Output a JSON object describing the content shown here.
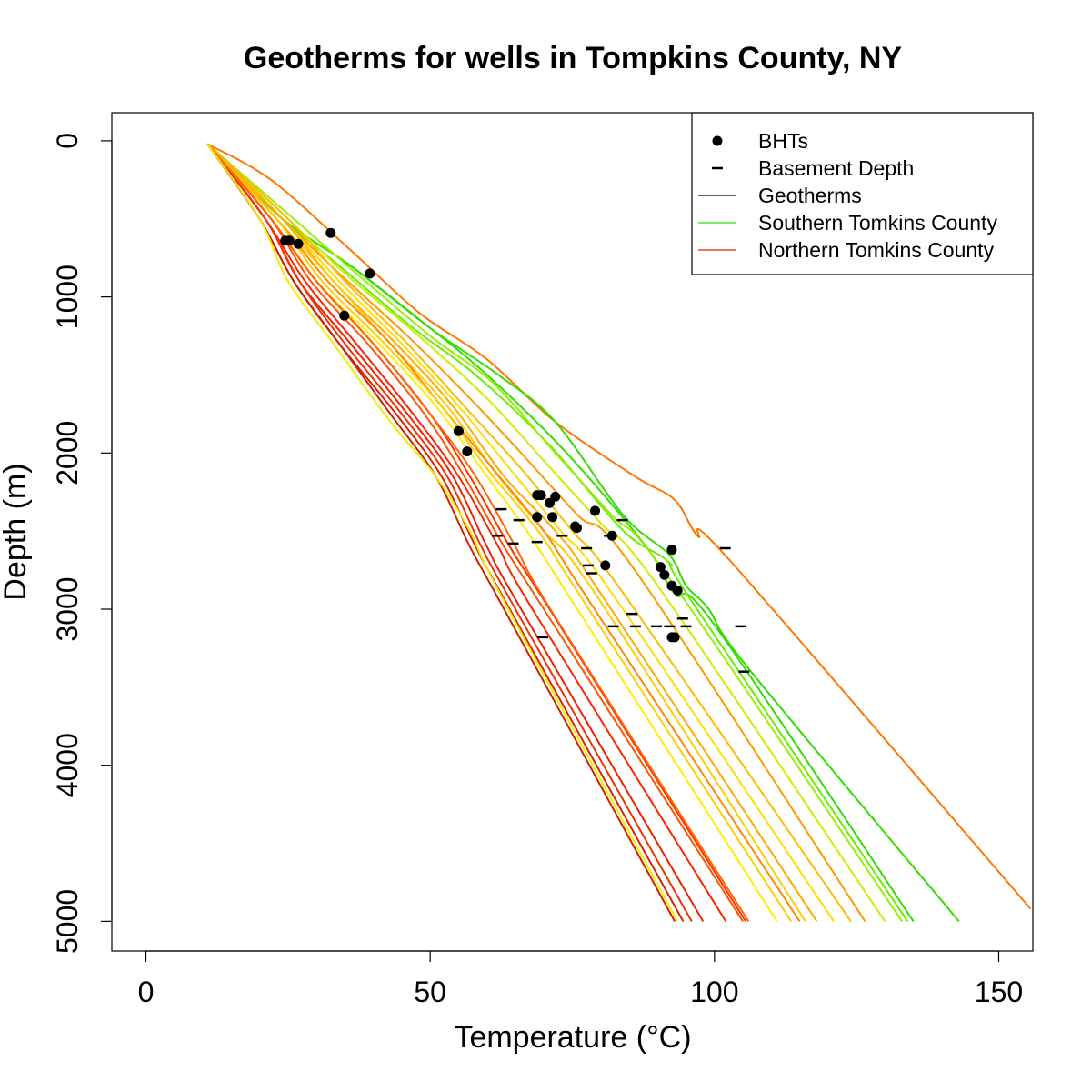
{
  "chart_data": {
    "type": "line",
    "title": "Geotherms for wells in Tompkins County, NY",
    "xlabel": "Temperature (°C)",
    "ylabel": "Depth (m)",
    "xlim": [
      -6,
      156
    ],
    "ylim": [
      5190,
      -180
    ],
    "y_reversed": true,
    "x_ticks": [
      0,
      50,
      100,
      150
    ],
    "y_ticks": [
      0,
      1000,
      2000,
      3000,
      4000,
      5000
    ],
    "x_tick_labels": [
      "0",
      "50",
      "100",
      "150"
    ],
    "y_tick_labels": [
      "0",
      "1000",
      "2000",
      "3000",
      "4000",
      "5000"
    ],
    "grid": false,
    "legend_position": "top-right",
    "legend": [
      {
        "label": "BHTs",
        "symbol": "point",
        "color": "#000000"
      },
      {
        "label": "Basement Depth",
        "symbol": "dash",
        "color": "#000000"
      },
      {
        "label": "Geotherms",
        "symbol": "line",
        "color": "#000000"
      },
      {
        "label": "Southern Tomkins County",
        "symbol": "line",
        "color": "#33dd00"
      },
      {
        "label": "Northern Tomkins County",
        "symbol": "line",
        "color": "#dd2200"
      }
    ],
    "surface": {
      "temperature": 10.8,
      "depth": 20
    },
    "series": [
      {
        "color": "#ff7700",
        "points": [
          [
            10.8,
            20
          ],
          [
            22,
            250
          ],
          [
            36,
            700
          ],
          [
            48,
            1100
          ],
          [
            60,
            1400
          ],
          [
            72,
            1800
          ],
          [
            86,
            2150
          ],
          [
            93,
            2300
          ],
          [
            97,
            2530
          ],
          [
            103,
            2700
          ],
          [
            155.6,
            4920
          ]
        ]
      },
      {
        "color": "#33dd00",
        "points": [
          [
            10.8,
            20
          ],
          [
            24,
            500
          ],
          [
            36,
            800
          ],
          [
            50,
            1200
          ],
          [
            62,
            1500
          ],
          [
            72,
            1800
          ],
          [
            84,
            2400
          ],
          [
            92,
            2650
          ],
          [
            95,
            2850
          ],
          [
            99,
            3000
          ],
          [
            106,
            3380
          ],
          [
            143,
            5000
          ]
        ]
      },
      {
        "color": "#33dd00",
        "points": [
          [
            10.8,
            20
          ],
          [
            24,
            500
          ],
          [
            36,
            800
          ],
          [
            50,
            1200
          ],
          [
            60,
            1500
          ],
          [
            74,
            2000
          ],
          [
            88,
            2600
          ],
          [
            93,
            2900
          ],
          [
            100,
            3100
          ],
          [
            135,
            5000
          ]
        ]
      },
      {
        "color": "#66ee00",
        "points": [
          [
            10.8,
            20
          ],
          [
            24,
            500
          ],
          [
            34,
            800
          ],
          [
            47,
            1200
          ],
          [
            58,
            1500
          ],
          [
            71,
            1950
          ],
          [
            84,
            2500
          ],
          [
            92,
            2700
          ],
          [
            96,
            2950
          ],
          [
            134,
            5000
          ]
        ]
      },
      {
        "color": "#99ee00",
        "points": [
          [
            10.8,
            20
          ],
          [
            26,
            500
          ],
          [
            37,
            850
          ],
          [
            50,
            1250
          ],
          [
            61,
            1550
          ],
          [
            72,
            2000
          ],
          [
            82,
            2400
          ],
          [
            92,
            2800
          ],
          [
            133,
            5000
          ]
        ]
      },
      {
        "color": "#ccee00",
        "points": [
          [
            10.8,
            20
          ],
          [
            25,
            500
          ],
          [
            35,
            850
          ],
          [
            48,
            1250
          ],
          [
            60,
            1650
          ],
          [
            70,
            2050
          ],
          [
            80,
            2450
          ],
          [
            90,
            2850
          ],
          [
            130,
            5000
          ]
        ]
      },
      {
        "color": "#ff9900",
        "points": [
          [
            10.8,
            20
          ],
          [
            24,
            500
          ],
          [
            34,
            850
          ],
          [
            46,
            1250
          ],
          [
            57,
            1650
          ],
          [
            66,
            2000
          ],
          [
            76,
            2400
          ],
          [
            86,
            2750
          ],
          [
            126.5,
            5000
          ]
        ]
      },
      {
        "color": "#ffbb00",
        "points": [
          [
            10.8,
            20
          ],
          [
            25,
            500
          ],
          [
            35,
            900
          ],
          [
            46,
            1300
          ],
          [
            56,
            1700
          ],
          [
            66,
            2100
          ],
          [
            75,
            2500
          ],
          [
            84,
            2900
          ],
          [
            124,
            5000
          ]
        ]
      },
      {
        "color": "#ffdd00",
        "points": [
          [
            10.8,
            20
          ],
          [
            24,
            500
          ],
          [
            34,
            900
          ],
          [
            45,
            1300
          ],
          [
            55,
            1700
          ],
          [
            64,
            2100
          ],
          [
            73,
            2500
          ],
          [
            82,
            2900
          ],
          [
            121,
            5000
          ]
        ]
      },
      {
        "color": "#ffaa00",
        "points": [
          [
            10.8,
            20
          ],
          [
            24,
            500
          ],
          [
            33,
            900
          ],
          [
            44,
            1300
          ],
          [
            54,
            1700
          ],
          [
            63,
            2150
          ],
          [
            72,
            2500
          ],
          [
            80,
            2900
          ],
          [
            118,
            5000
          ]
        ]
      },
      {
        "color": "#ffcc00",
        "points": [
          [
            10.8,
            20
          ],
          [
            23,
            500
          ],
          [
            33,
            900
          ],
          [
            43,
            1300
          ],
          [
            53,
            1700
          ],
          [
            62,
            2150
          ],
          [
            70,
            2500
          ],
          [
            79,
            2900
          ],
          [
            116,
            5000
          ]
        ]
      },
      {
        "color": "#ff8800",
        "points": [
          [
            10.8,
            20
          ],
          [
            23,
            500
          ],
          [
            32,
            900
          ],
          [
            43,
            1300
          ],
          [
            52,
            1700
          ],
          [
            61,
            2100
          ],
          [
            70,
            2500
          ],
          [
            78,
            2950
          ],
          [
            115,
            5000
          ]
        ]
      },
      {
        "color": "#ffcc00",
        "points": [
          [
            10.8,
            20
          ],
          [
            23,
            500
          ],
          [
            31,
            900
          ],
          [
            42,
            1300
          ],
          [
            52,
            1700
          ],
          [
            60,
            2100
          ],
          [
            69,
            2500
          ],
          [
            77,
            2950
          ],
          [
            113.5,
            5000
          ]
        ]
      },
      {
        "color": "#ffee00",
        "points": [
          [
            10.8,
            20
          ],
          [
            22,
            500
          ],
          [
            30,
            900
          ],
          [
            41,
            1300
          ],
          [
            51,
            1700
          ],
          [
            59,
            2100
          ],
          [
            67,
            2500
          ],
          [
            75,
            2950
          ],
          [
            111,
            5000
          ]
        ]
      },
      {
        "color": "#ff3300",
        "points": [
          [
            10.8,
            20
          ],
          [
            22,
            500
          ],
          [
            30,
            900
          ],
          [
            40,
            1300
          ],
          [
            50,
            1750
          ],
          [
            57,
            2150
          ],
          [
            64,
            2600
          ],
          [
            71,
            3000
          ],
          [
            105.5,
            5000
          ]
        ]
      },
      {
        "color": "#ff5500",
        "points": [
          [
            10.8,
            20
          ],
          [
            22,
            500
          ],
          [
            29,
            900
          ],
          [
            39,
            1300
          ],
          [
            49,
            1750
          ],
          [
            56,
            2150
          ],
          [
            63,
            2600
          ],
          [
            70,
            3000
          ],
          [
            105,
            5000
          ]
        ]
      },
      {
        "color": "#ff2200",
        "points": [
          [
            10.8,
            20
          ],
          [
            21,
            500
          ],
          [
            28,
            900
          ],
          [
            37,
            1300
          ],
          [
            47,
            1750
          ],
          [
            55,
            2150
          ],
          [
            62,
            2600
          ],
          [
            68,
            3000
          ],
          [
            102,
            5000
          ]
        ]
      },
      {
        "color": "#ee2200",
        "points": [
          [
            10.8,
            20
          ],
          [
            21,
            500
          ],
          [
            27,
            900
          ],
          [
            36,
            1300
          ],
          [
            46,
            1750
          ],
          [
            54,
            2150
          ],
          [
            60,
            2600
          ],
          [
            66,
            3000
          ],
          [
            98,
            5000
          ]
        ]
      },
      {
        "color": "#ee3300",
        "points": [
          [
            10.8,
            20
          ],
          [
            21,
            500
          ],
          [
            27,
            900
          ],
          [
            35,
            1300
          ],
          [
            45,
            1750
          ],
          [
            53,
            2150
          ],
          [
            59,
            2600
          ],
          [
            65,
            3000
          ],
          [
            96,
            5000
          ]
        ]
      },
      {
        "color": "#dd2200",
        "points": [
          [
            10.8,
            20
          ],
          [
            20,
            500
          ],
          [
            26,
            900
          ],
          [
            34,
            1300
          ],
          [
            44,
            1750
          ],
          [
            52,
            2150
          ],
          [
            58,
            2600
          ],
          [
            64,
            3000
          ],
          [
            94.5,
            5000
          ]
        ]
      },
      {
        "color": "#cc2200",
        "points": [
          [
            10.8,
            20
          ],
          [
            20,
            500
          ],
          [
            26,
            900
          ],
          [
            34,
            1300
          ],
          [
            43,
            1750
          ],
          [
            51,
            2150
          ],
          [
            57,
            2600
          ],
          [
            63,
            3000
          ],
          [
            93,
            5000
          ]
        ]
      },
      {
        "color": "#ff6600",
        "points": [
          [
            10.8,
            20
          ],
          [
            22,
            500
          ],
          [
            30,
            900
          ],
          [
            40,
            1300
          ],
          [
            50,
            1750
          ],
          [
            58,
            2150
          ],
          [
            65,
            2600
          ],
          [
            72,
            3050
          ],
          [
            106,
            5000
          ]
        ]
      },
      {
        "color": "#eeee00",
        "points": [
          [
            10.8,
            20
          ],
          [
            20,
            500
          ],
          [
            25,
            900
          ],
          [
            33,
            1300
          ],
          [
            43,
            1800
          ],
          [
            51,
            2150
          ],
          [
            57,
            2500
          ],
          [
            63,
            2950
          ],
          [
            93.5,
            5000
          ]
        ]
      }
    ],
    "bhts": [
      [
        24.5,
        640
      ],
      [
        25.2,
        640
      ],
      [
        26.8,
        660
      ],
      [
        32.5,
        590
      ],
      [
        39.4,
        850
      ],
      [
        34.9,
        1120
      ],
      [
        55,
        1860
      ],
      [
        56.5,
        1990
      ],
      [
        68.8,
        2270
      ],
      [
        69.5,
        2270
      ],
      [
        72,
        2280
      ],
      [
        71,
        2320
      ],
      [
        68.8,
        2410
      ],
      [
        71.5,
        2410
      ],
      [
        79,
        2370
      ],
      [
        75.5,
        2470
      ],
      [
        75.8,
        2480
      ],
      [
        82,
        2530
      ],
      [
        80.8,
        2720
      ],
      [
        92.5,
        2620
      ],
      [
        90.5,
        2730
      ],
      [
        91.2,
        2780
      ],
      [
        92.5,
        2850
      ],
      [
        93.5,
        2880
      ],
      [
        92.5,
        3180
      ],
      [
        93,
        3180
      ]
    ],
    "basement": [
      [
        62.5,
        2360
      ],
      [
        65.6,
        2430
      ],
      [
        61.8,
        2530
      ],
      [
        64.6,
        2580
      ],
      [
        68.8,
        2570
      ],
      [
        69.8,
        3180
      ],
      [
        73.2,
        2530
      ],
      [
        77.5,
        2610
      ],
      [
        77.8,
        2720
      ],
      [
        78.4,
        2770
      ],
      [
        81.5,
        2530
      ],
      [
        83.8,
        2430
      ],
      [
        85.5,
        3030
      ],
      [
        86.1,
        3110
      ],
      [
        82.2,
        3110
      ],
      [
        89.8,
        3110
      ],
      [
        92.1,
        3110
      ],
      [
        94.4,
        3060
      ],
      [
        95,
        3110
      ],
      [
        101.9,
        2610
      ],
      [
        104.6,
        3110
      ],
      [
        105.2,
        3400
      ]
    ]
  }
}
